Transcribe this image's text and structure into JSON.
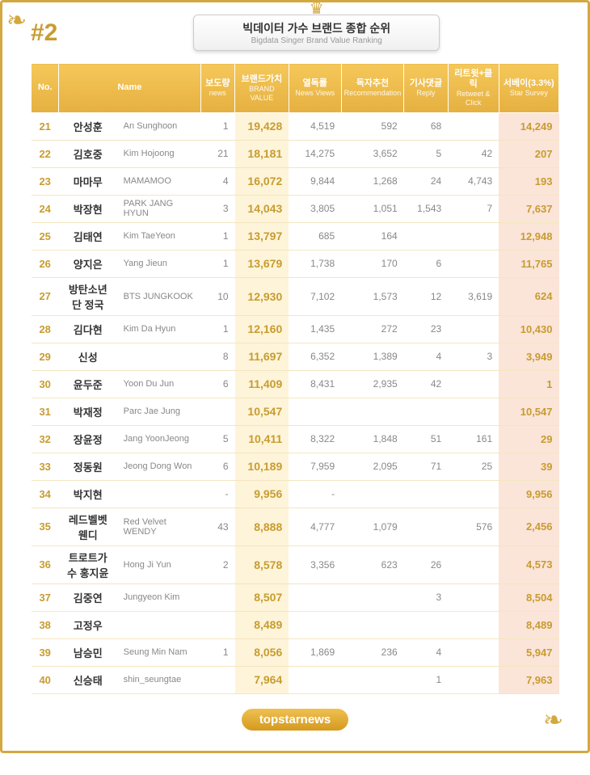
{
  "page_number": "#2",
  "title_kr": "빅데이터 가수 브랜드 종합 순위",
  "title_en": "Bigdata Singer Brand Value Ranking",
  "footer_logo": "topstarnews",
  "columns": {
    "no": "No.",
    "name": "Name",
    "news_kr": "보도량",
    "news_en": "news",
    "brand_kr": "브랜드가치",
    "brand_en": "BRAND VALUE",
    "views_kr": "열독률",
    "views_en": "News Views",
    "rec_kr": "독자추천",
    "rec_en": "Recommendation",
    "reply_kr": "기사댓글",
    "reply_en": "Reply",
    "rt_kr": "리트윗+클릭",
    "rt_en": "Retweet & Click",
    "survey_kr": "서베이(3.3%)",
    "survey_en": "Star Survey"
  },
  "rows": [
    {
      "no": "21",
      "kr": "안성훈",
      "en": "An Sunghoon",
      "news": "1",
      "brand": "19,428",
      "views": "4,519",
      "rec": "592",
      "reply": "68",
      "rt": "",
      "survey": "14,249"
    },
    {
      "no": "22",
      "kr": "김호중",
      "en": "Kim Hojoong",
      "news": "21",
      "brand": "18,181",
      "views": "14,275",
      "rec": "3,652",
      "reply": "5",
      "rt": "42",
      "survey": "207"
    },
    {
      "no": "23",
      "kr": "마마무",
      "en": "MAMAMOO",
      "news": "4",
      "brand": "16,072",
      "views": "9,844",
      "rec": "1,268",
      "reply": "24",
      "rt": "4,743",
      "survey": "193"
    },
    {
      "no": "24",
      "kr": "박장현",
      "en": "PARK JANG HYUN",
      "news": "3",
      "brand": "14,043",
      "views": "3,805",
      "rec": "1,051",
      "reply": "1,543",
      "rt": "7",
      "survey": "7,637"
    },
    {
      "no": "25",
      "kr": "김태연",
      "en": "Kim TaeYeon",
      "news": "1",
      "brand": "13,797",
      "views": "685",
      "rec": "164",
      "reply": "",
      "rt": "",
      "survey": "12,948"
    },
    {
      "no": "26",
      "kr": "양지은",
      "en": "Yang Jieun",
      "news": "1",
      "brand": "13,679",
      "views": "1,738",
      "rec": "170",
      "reply": "6",
      "rt": "",
      "survey": "11,765"
    },
    {
      "no": "27",
      "kr": "방탄소년단 정국",
      "en": "BTS JUNGKOOK",
      "news": "10",
      "brand": "12,930",
      "views": "7,102",
      "rec": "1,573",
      "reply": "12",
      "rt": "3,619",
      "survey": "624"
    },
    {
      "no": "28",
      "kr": "김다현",
      "en": "Kim Da Hyun",
      "news": "1",
      "brand": "12,160",
      "views": "1,435",
      "rec": "272",
      "reply": "23",
      "rt": "",
      "survey": "10,430"
    },
    {
      "no": "29",
      "kr": "신성",
      "en": "",
      "news": "8",
      "brand": "11,697",
      "views": "6,352",
      "rec": "1,389",
      "reply": "4",
      "rt": "3",
      "survey": "3,949"
    },
    {
      "no": "30",
      "kr": "윤두준",
      "en": "Yoon Du Jun",
      "news": "6",
      "brand": "11,409",
      "views": "8,431",
      "rec": "2,935",
      "reply": "42",
      "rt": "",
      "survey": "1"
    },
    {
      "no": "31",
      "kr": "박재정",
      "en": "Parc Jae Jung",
      "news": "",
      "brand": "10,547",
      "views": "",
      "rec": "",
      "reply": "",
      "rt": "",
      "survey": "10,547"
    },
    {
      "no": "32",
      "kr": "장윤정",
      "en": "Jang YoonJeong",
      "news": "5",
      "brand": "10,411",
      "views": "8,322",
      "rec": "1,848",
      "reply": "51",
      "rt": "161",
      "survey": "29"
    },
    {
      "no": "33",
      "kr": "정동원",
      "en": "Jeong Dong Won",
      "news": "6",
      "brand": "10,189",
      "views": "7,959",
      "rec": "2,095",
      "reply": "71",
      "rt": "25",
      "survey": "39"
    },
    {
      "no": "34",
      "kr": "박지현",
      "en": "",
      "news": "-",
      "brand": "9,956",
      "views": "-",
      "rec": "",
      "reply": "",
      "rt": "",
      "survey": "9,956"
    },
    {
      "no": "35",
      "kr": "레드벨벳 웬디",
      "en": "Red Velvet WENDY",
      "news": "43",
      "brand": "8,888",
      "views": "4,777",
      "rec": "1,079",
      "reply": "",
      "rt": "576",
      "survey": "2,456"
    },
    {
      "no": "36",
      "kr": "트로트가수 홍지윤",
      "en": "Hong Ji Yun",
      "news": "2",
      "brand": "8,578",
      "views": "3,356",
      "rec": "623",
      "reply": "26",
      "rt": "",
      "survey": "4,573"
    },
    {
      "no": "37",
      "kr": "김중연",
      "en": "Jungyeon Kim",
      "news": "",
      "brand": "8,507",
      "views": "",
      "rec": "",
      "reply": "3",
      "rt": "",
      "survey": "8,504"
    },
    {
      "no": "38",
      "kr": "고정우",
      "en": "",
      "news": "",
      "brand": "8,489",
      "views": "",
      "rec": "",
      "reply": "",
      "rt": "",
      "survey": "8,489"
    },
    {
      "no": "39",
      "kr": "남승민",
      "en": "Seung Min Nam",
      "news": "1",
      "brand": "8,056",
      "views": "1,869",
      "rec": "236",
      "reply": "4",
      "rt": "",
      "survey": "5,947"
    },
    {
      "no": "40",
      "kr": "신승태",
      "en": "shin_seungtae",
      "news": "",
      "brand": "7,964",
      "views": "",
      "rec": "",
      "reply": "1",
      "rt": "",
      "survey": "7,963"
    }
  ],
  "colors": {
    "gold": "#d4a840",
    "gold_dark": "#c89c30",
    "brand_bg": "#fdf4d9",
    "survey_bg": "#fbe4d8",
    "header_grad_top": "#f5c85a",
    "header_grad_bot": "#e5b040"
  }
}
